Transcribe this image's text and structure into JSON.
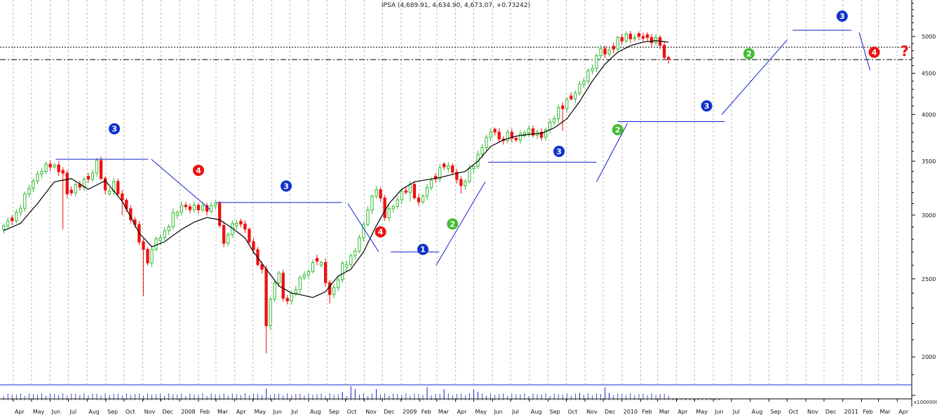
{
  "header": {
    "title": "IPSA (4,689.91, 4,634.90, 4,673.07, +0.73242)"
  },
  "volume_axis_label": "x1000000",
  "colors": {
    "up": "#33bb33",
    "down": "#ee1111",
    "ma_line": "#000000",
    "trendline": "#1122cc",
    "grid": "#bbbbbb",
    "badge_1": "#1133cc",
    "badge_2": "#44bb33",
    "badge_3": "#1133cc",
    "badge_4": "#ee1111",
    "question": "#ee1111"
  },
  "annotations": {
    "question_mark": "?",
    "badges": [
      {
        "label": "1",
        "color": "#1133cc",
        "date": "2009-02-06",
        "price": 2720
      },
      {
        "label": "2",
        "color": "#44bb33",
        "date": "2009-03-27",
        "price": 2925
      },
      {
        "label": "2",
        "color": "#44bb33",
        "date": "2009-12-25",
        "price": 3830
      },
      {
        "label": "2",
        "color": "#44bb33",
        "date": "2010-07-30",
        "price": 4760
      },
      {
        "label": "3",
        "color": "#1133cc",
        "date": "2007-09-15",
        "price": 3840
      },
      {
        "label": "3",
        "color": "#1133cc",
        "date": "2008-06-25",
        "price": 3260
      },
      {
        "label": "3",
        "color": "#1133cc",
        "date": "2009-09-19",
        "price": 3600
      },
      {
        "label": "3",
        "color": "#1133cc",
        "date": "2010-05-21",
        "price": 4100
      },
      {
        "label": "3",
        "color": "#1133cc",
        "date": "2010-12-31",
        "price": 5300
      },
      {
        "label": "4",
        "color": "#ee1111",
        "date": "2008-02-01",
        "price": 3410
      },
      {
        "label": "4",
        "color": "#ee1111",
        "date": "2008-11-28",
        "price": 2860
      },
      {
        "label": "4",
        "color": "#ee1111",
        "date": "2011-02-22",
        "price": 4780
      }
    ]
  },
  "chart_data": {
    "type": "candlestick",
    "title": "IPSA (4,689.91, 4,634.90, 4,673.07, +0.73242)",
    "scale": "log",
    "ylim": [
      1850,
      5550
    ],
    "y_ticks": [
      2000,
      2500,
      3000,
      3500,
      4000,
      4500,
      5000
    ],
    "xlim": [
      "2007-03-10",
      "2011-04-25"
    ],
    "x_ticks": [
      {
        "label": "Apr",
        "date": "2007-04-01"
      },
      {
        "label": "May",
        "date": "2007-05-01"
      },
      {
        "label": "Jun",
        "date": "2007-06-01"
      },
      {
        "label": "Jul",
        "date": "2007-07-01"
      },
      {
        "label": "Aug",
        "date": "2007-08-01"
      },
      {
        "label": "Sep",
        "date": "2007-09-01"
      },
      {
        "label": "Oct",
        "date": "2007-10-01"
      },
      {
        "label": "Nov",
        "date": "2007-11-01"
      },
      {
        "label": "Dec",
        "date": "2007-12-01"
      },
      {
        "label": "2008",
        "date": "2008-01-01"
      },
      {
        "label": "Feb",
        "date": "2008-02-01"
      },
      {
        "label": "Mar",
        "date": "2008-03-01"
      },
      {
        "label": "Apr",
        "date": "2008-04-01"
      },
      {
        "label": "May",
        "date": "2008-05-01"
      },
      {
        "label": "Jun",
        "date": "2008-06-01"
      },
      {
        "label": "Jul",
        "date": "2008-07-01"
      },
      {
        "label": "Aug",
        "date": "2008-08-01"
      },
      {
        "label": "Sep",
        "date": "2008-09-01"
      },
      {
        "label": "Oct",
        "date": "2008-10-01"
      },
      {
        "label": "Nov",
        "date": "2008-11-01"
      },
      {
        "label": "Dec",
        "date": "2008-12-01"
      },
      {
        "label": "2009",
        "date": "2009-01-01"
      },
      {
        "label": "Feb",
        "date": "2009-02-01"
      },
      {
        "label": "Mar",
        "date": "2009-03-01"
      },
      {
        "label": "Apr",
        "date": "2009-04-01"
      },
      {
        "label": "May",
        "date": "2009-05-01"
      },
      {
        "label": "Jun",
        "date": "2009-06-01"
      },
      {
        "label": "Jul",
        "date": "2009-07-01"
      },
      {
        "label": "Aug",
        "date": "2009-08-01"
      },
      {
        "label": "Sep",
        "date": "2009-09-01"
      },
      {
        "label": "Oct",
        "date": "2009-10-01"
      },
      {
        "label": "Nov",
        "date": "2009-11-01"
      },
      {
        "label": "Dec",
        "date": "2009-12-01"
      },
      {
        "label": "2010",
        "date": "2010-01-01"
      },
      {
        "label": "Feb",
        "date": "2010-02-01"
      },
      {
        "label": "Mar",
        "date": "2010-03-01"
      },
      {
        "label": "Apr",
        "date": "2010-04-01"
      },
      {
        "label": "May",
        "date": "2010-05-01"
      },
      {
        "label": "Jun",
        "date": "2010-06-01"
      },
      {
        "label": "Jul",
        "date": "2010-07-01"
      },
      {
        "label": "Aug",
        "date": "2010-08-01"
      },
      {
        "label": "Sep",
        "date": "2010-09-01"
      },
      {
        "label": "Oct",
        "date": "2010-10-01"
      },
      {
        "label": "Nov",
        "date": "2010-11-01"
      },
      {
        "label": "Dec",
        "date": "2010-12-01"
      },
      {
        "label": "2011",
        "date": "2011-01-01"
      },
      {
        "label": "Feb",
        "date": "2011-02-01"
      },
      {
        "label": "Mar",
        "date": "2011-03-01"
      },
      {
        "label": "Apr",
        "date": "2011-04-01"
      }
    ],
    "grid": true,
    "candle_anchor_date": "2007-03-16",
    "candle_interval_days": 7,
    "close_path": [
      [
        0,
        2910
      ],
      [
        3,
        3000
      ],
      [
        6,
        3250
      ],
      [
        9,
        3420
      ],
      [
        11,
        3470
      ],
      [
        14,
        3380
      ],
      [
        15,
        3180
      ],
      [
        17,
        3250
      ],
      [
        19,
        3300
      ],
      [
        21,
        3380
      ],
      [
        22,
        3500
      ],
      [
        24,
        3200
      ],
      [
        26,
        3280
      ],
      [
        29,
        3050
      ],
      [
        31,
        2900
      ],
      [
        33,
        2700
      ],
      [
        34,
        2630
      ],
      [
        36,
        2800
      ],
      [
        38,
        2850
      ],
      [
        40,
        3000
      ],
      [
        42,
        3080
      ],
      [
        44,
        3060
      ],
      [
        46,
        3070
      ],
      [
        48,
        3050
      ],
      [
        50,
        3100
      ],
      [
        52,
        2750
      ],
      [
        53,
        2860
      ],
      [
        55,
        2950
      ],
      [
        57,
        2880
      ],
      [
        59,
        2700
      ],
      [
        61,
        2550
      ],
      [
        62,
        2200
      ],
      [
        63,
        2350
      ],
      [
        64,
        2470
      ],
      [
        65,
        2550
      ],
      [
        66,
        2350
      ],
      [
        68,
        2380
      ],
      [
        70,
        2500
      ],
      [
        72,
        2560
      ],
      [
        74,
        2650
      ],
      [
        75,
        2600
      ],
      [
        77,
        2380
      ],
      [
        79,
        2500
      ],
      [
        80,
        2600
      ],
      [
        82,
        2650
      ],
      [
        84,
        2800
      ],
      [
        86,
        3050
      ],
      [
        88,
        3250
      ],
      [
        90,
        3000
      ],
      [
        92,
        3080
      ],
      [
        94,
        3200
      ],
      [
        96,
        3250
      ],
      [
        98,
        3100
      ],
      [
        100,
        3250
      ],
      [
        102,
        3350
      ],
      [
        104,
        3470
      ],
      [
        106,
        3400
      ],
      [
        108,
        3250
      ],
      [
        110,
        3400
      ],
      [
        112,
        3550
      ],
      [
        114,
        3750
      ],
      [
        116,
        3830
      ],
      [
        117,
        3700
      ],
      [
        119,
        3780
      ],
      [
        121,
        3720
      ],
      [
        123,
        3820
      ],
      [
        125,
        3800
      ],
      [
        127,
        3760
      ],
      [
        129,
        3900
      ],
      [
        131,
        4050
      ],
      [
        133,
        4150
      ],
      [
        135,
        4250
      ],
      [
        136,
        4350
      ],
      [
        138,
        4500
      ],
      [
        140,
        4700
      ],
      [
        141,
        4850
      ],
      [
        142,
        4750
      ],
      [
        144,
        4850
      ],
      [
        145,
        4950
      ],
      [
        147,
        5000
      ],
      [
        149,
        4980
      ],
      [
        151,
        5000
      ],
      [
        152,
        4950
      ],
      [
        154,
        4950
      ],
      [
        155,
        4900
      ],
      [
        156,
        4700
      ],
      [
        157,
        4673
      ]
    ],
    "wick_spikes": [
      [
        14,
        2880
      ],
      [
        28,
        3000
      ],
      [
        33,
        2380
      ],
      [
        40,
        2960
      ],
      [
        62,
        2020
      ],
      [
        64,
        2370
      ],
      [
        77,
        2330
      ],
      [
        96,
        3120
      ],
      [
        108,
        3190
      ],
      [
        132,
        3820
      ]
    ],
    "moving_average": [
      [
        0,
        2870
      ],
      [
        4,
        2930
      ],
      [
        8,
        3100
      ],
      [
        12,
        3300
      ],
      [
        16,
        3330
      ],
      [
        20,
        3230
      ],
      [
        24,
        3310
      ],
      [
        28,
        3120
      ],
      [
        32,
        2850
      ],
      [
        35,
        2740
      ],
      [
        38,
        2780
      ],
      [
        42,
        2880
      ],
      [
        45,
        2940
      ],
      [
        48,
        2980
      ],
      [
        51,
        2960
      ],
      [
        54,
        2890
      ],
      [
        57,
        2810
      ],
      [
        59,
        2700
      ],
      [
        62,
        2570
      ],
      [
        65,
        2450
      ],
      [
        68,
        2400
      ],
      [
        70,
        2390
      ],
      [
        73,
        2370
      ],
      [
        76,
        2410
      ],
      [
        79,
        2520
      ],
      [
        82,
        2570
      ],
      [
        85,
        2700
      ],
      [
        88,
        2910
      ],
      [
        91,
        3100
      ],
      [
        94,
        3230
      ],
      [
        97,
        3300
      ],
      [
        100,
        3320
      ],
      [
        103,
        3340
      ],
      [
        106,
        3370
      ],
      [
        109,
        3400
      ],
      [
        112,
        3500
      ],
      [
        115,
        3650
      ],
      [
        118,
        3720
      ],
      [
        121,
        3760
      ],
      [
        124,
        3780
      ],
      [
        127,
        3790
      ],
      [
        130,
        3850
      ],
      [
        133,
        3950
      ],
      [
        136,
        4150
      ],
      [
        139,
        4400
      ],
      [
        142,
        4620
      ],
      [
        145,
        4780
      ],
      [
        148,
        4870
      ],
      [
        151,
        4920
      ],
      [
        154,
        4940
      ],
      [
        157,
        4920
      ]
    ],
    "volume_candles": [
      62,
      80,
      82,
      83,
      88,
      100,
      104,
      111,
      112,
      136,
      142,
      143
    ],
    "volume_ylim": [
      0,
      13000000
    ],
    "reference_lines": [
      {
        "price": 4850,
        "style": "dotted"
      },
      {
        "price": 4680,
        "style": "dash-dot"
      }
    ],
    "resistance_lines": [
      {
        "start": "2007-06-10",
        "end": "2007-11-10",
        "price": 3520
      },
      {
        "start": "2008-03-01",
        "end": "2008-09-25",
        "price": 3110
      },
      {
        "start": "2008-12-15",
        "end": "2009-03-05",
        "price": 2700
      },
      {
        "start": "2009-05-25",
        "end": "2009-11-20",
        "price": 3490
      },
      {
        "start": "2009-12-25",
        "end": "2010-06-20",
        "price": 3920
      },
      {
        "start": "2010-10-10",
        "end": "2011-01-15",
        "price": 5090
      }
    ],
    "trend_lines": [
      {
        "start": [
          "2007-11-15",
          3520
        ],
        "end": [
          "2008-02-20",
          3050
        ]
      },
      {
        "start": [
          "2008-10-05",
          3100
        ],
        "end": [
          "2008-11-25",
          2700
        ]
      },
      {
        "start": [
          "2009-02-28",
          2600
        ],
        "end": [
          "2009-05-20",
          3300
        ]
      },
      {
        "start": [
          "2009-11-20",
          3300
        ],
        "end": [
          "2010-01-10",
          3900
        ]
      },
      {
        "start": [
          "2010-06-15",
          4000
        ],
        "end": [
          "2010-10-01",
          4950
        ]
      },
      {
        "start": [
          "2011-01-28",
          5060
        ],
        "end": [
          "2011-02-15",
          4540
        ]
      }
    ]
  }
}
